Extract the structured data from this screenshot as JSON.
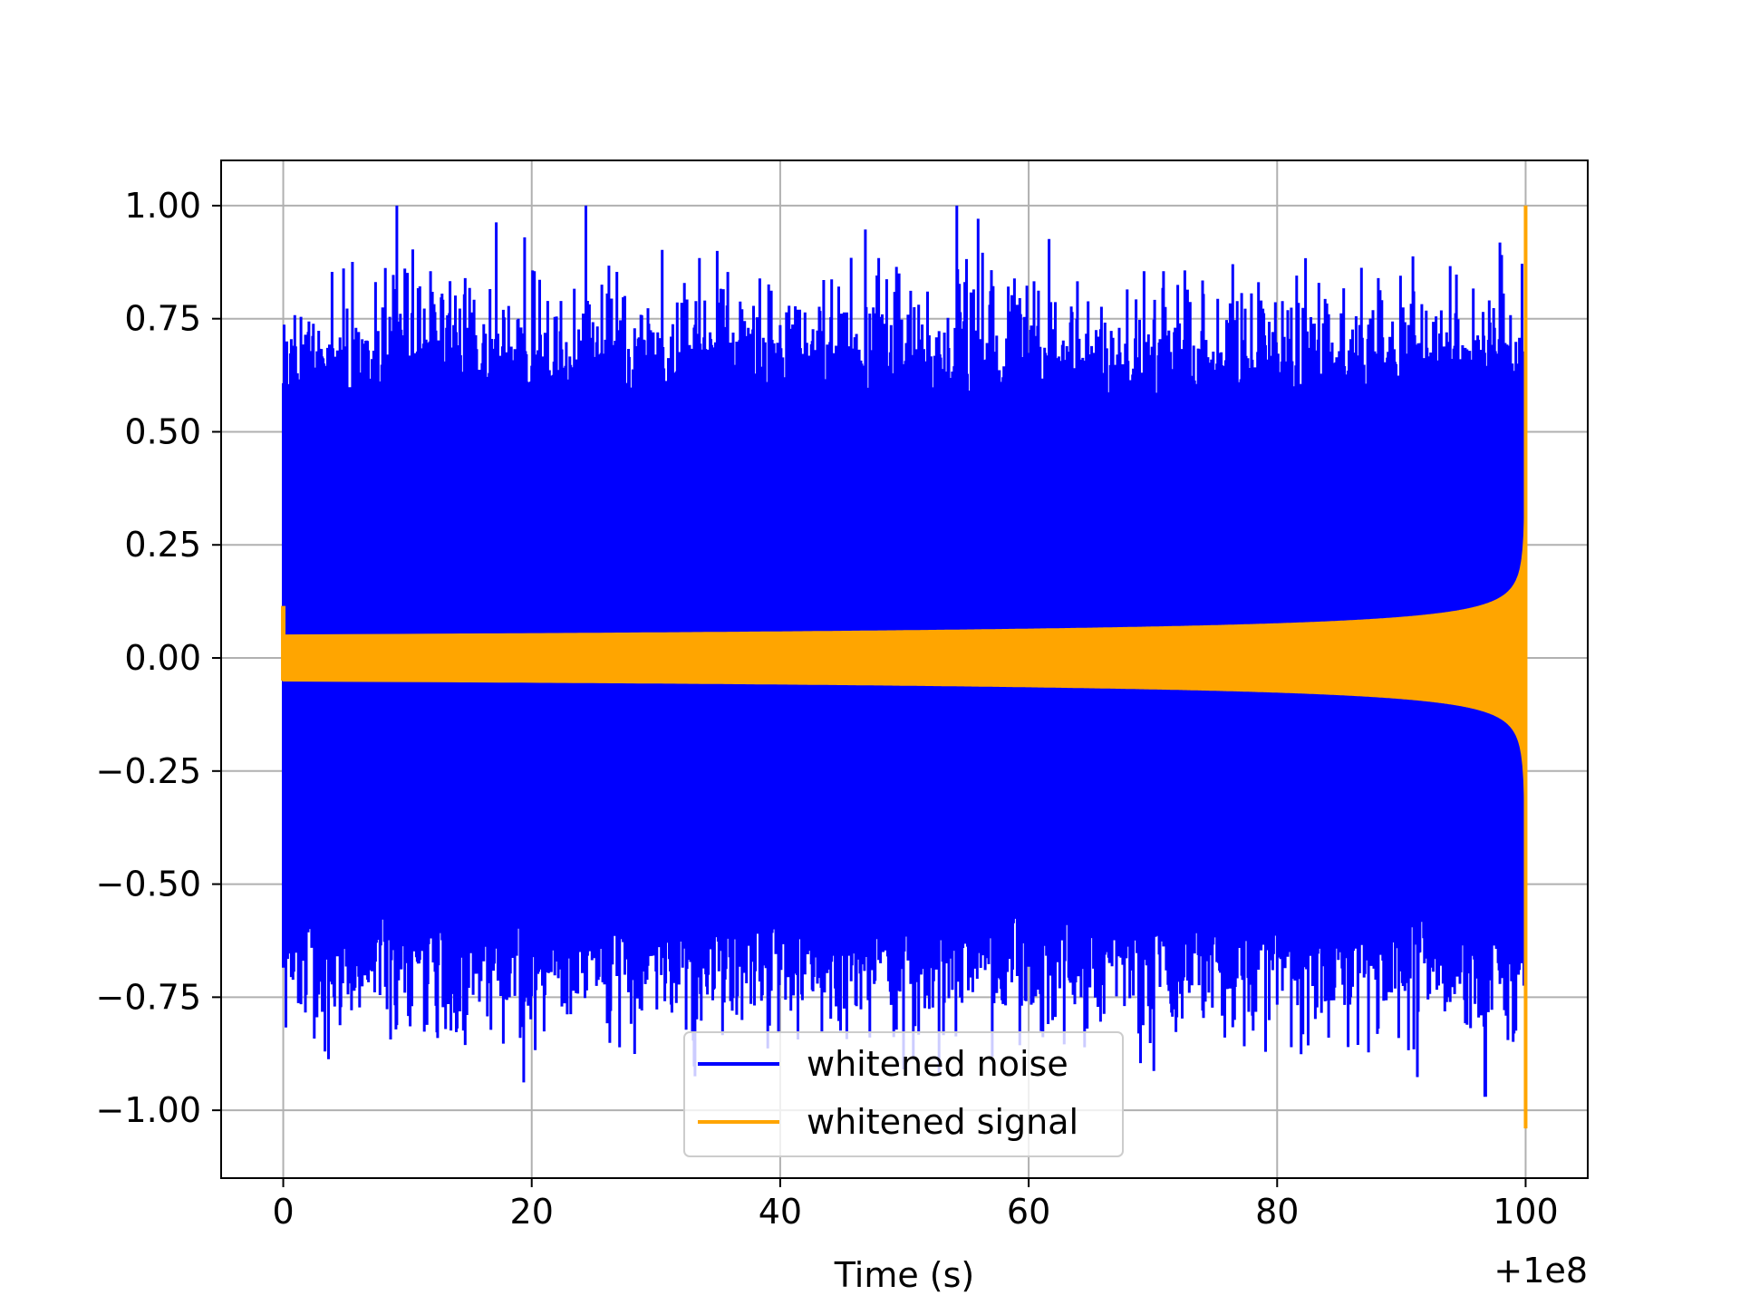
{
  "chart_data": {
    "type": "line",
    "title": "",
    "xlabel": "Time (s)",
    "ylabel": "",
    "x_offset_label": "+1e8",
    "xlim": [
      -5,
      105
    ],
    "ylim": [
      -1.15,
      1.1
    ],
    "xticks": [
      0,
      20,
      40,
      60,
      80,
      100
    ],
    "xtick_labels": [
      "0",
      "20",
      "40",
      "60",
      "80",
      "100"
    ],
    "yticks": [
      -1.0,
      -0.75,
      -0.5,
      -0.25,
      0.0,
      0.25,
      0.5,
      0.75,
      1.0
    ],
    "ytick_labels": [
      "−1.00",
      "−0.75",
      "−0.50",
      "−0.25",
      "0.00",
      "0.25",
      "0.50",
      "0.75",
      "1.00"
    ],
    "grid": true,
    "legend_position": "bottom-center",
    "series": [
      {
        "name": "whitened noise",
        "color": "#0000ff",
        "x_range": [
          0,
          100
        ],
        "description_values": {
          "max": 1.0,
          "max_at": 54.2,
          "min": -0.97,
          "min_at": 96.8,
          "typical_envelope": 0.6
        }
      },
      {
        "name": "whitened signal",
        "color": "#ffa500",
        "x_range": [
          0,
          100
        ],
        "description_values": {
          "max": 1.0,
          "max_at": 100,
          "min": -1.04,
          "min_at": 100,
          "amplitude_at_start": 0.05
        }
      }
    ]
  }
}
